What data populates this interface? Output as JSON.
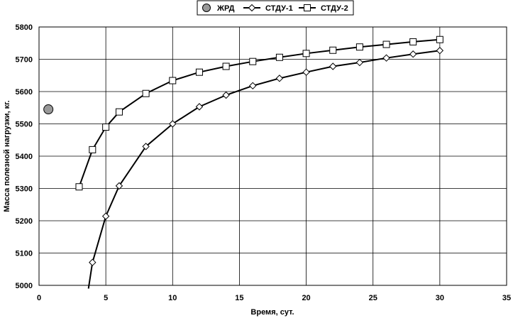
{
  "chart_data": {
    "type": "line",
    "title": "",
    "xlabel": "Время, сут.",
    "ylabel": "Масса полезной нагрузки, кг.",
    "xlim": [
      0,
      35
    ],
    "ylim": [
      5000,
      5800
    ],
    "xticks": [
      0,
      5,
      10,
      15,
      20,
      25,
      30,
      35
    ],
    "yticks": [
      5000,
      5100,
      5200,
      5300,
      5400,
      5500,
      5600,
      5700,
      5800
    ],
    "grid": true,
    "legend_position": "top",
    "series": [
      {
        "name": "ЖРД",
        "marker": "circle",
        "line": false,
        "color": "#999999",
        "x": [
          0.7
        ],
        "y": [
          5545
        ]
      },
      {
        "name": "СТДУ-1",
        "marker": "diamond",
        "line": true,
        "color": "#000000",
        "x": [
          3.7,
          4,
          5,
          6,
          8,
          10,
          12,
          14,
          16,
          18,
          20,
          22,
          24,
          26,
          28,
          30
        ],
        "y": [
          4990,
          5071,
          5214,
          5308,
          5430,
          5500,
          5553,
          5589,
          5618,
          5641,
          5660,
          5678,
          5690,
          5704,
          5716,
          5727
        ],
        "marker_from": 1
      },
      {
        "name": "СТДУ-2",
        "marker": "square",
        "line": true,
        "color": "#000000",
        "x": [
          3,
          4,
          5,
          6,
          8,
          10,
          12,
          14,
          16,
          18,
          20,
          22,
          24,
          26,
          28,
          30
        ],
        "y": [
          5305,
          5420,
          5490,
          5537,
          5594,
          5634,
          5660,
          5678,
          5693,
          5706,
          5718,
          5728,
          5738,
          5746,
          5754,
          5761
        ],
        "marker_from": 0
      }
    ]
  }
}
